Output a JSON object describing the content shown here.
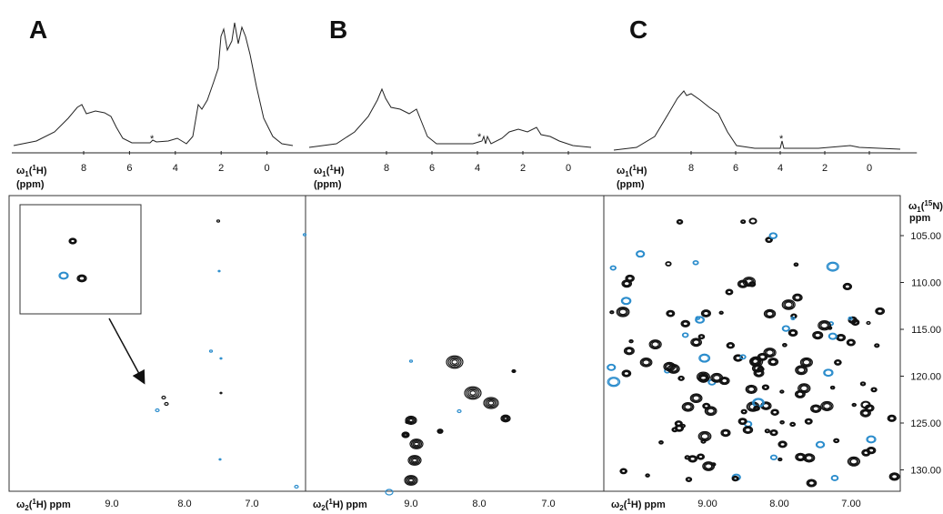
{
  "panels": [
    {
      "label": "A",
      "spectrum_marker": "*",
      "spectrum_axis": {
        "label": [
          "ω",
          "1",
          "(",
          "1",
          "H)"
        ],
        "unit": "(ppm)",
        "ticks": [
          "8",
          "6",
          "4",
          "2",
          "0"
        ]
      },
      "map_x_axis": {
        "label": [
          "ω",
          "2",
          "(",
          "1",
          "H) ppm"
        ],
        "ticks": [
          "9.0",
          "8.0",
          "7.0"
        ]
      }
    },
    {
      "label": "B",
      "spectrum_marker": "*",
      "spectrum_axis": {
        "label": [
          "ω",
          "1",
          "(",
          "1",
          "H)"
        ],
        "unit": "(ppm)",
        "ticks": [
          "8",
          "6",
          "4",
          "2",
          "0"
        ]
      },
      "map_x_axis": {
        "label": [
          "ω",
          "2",
          "(",
          "1",
          "H) ppm"
        ],
        "ticks": [
          "9.0",
          "8.0",
          "7.0"
        ]
      }
    },
    {
      "label": "C",
      "spectrum_marker": "*",
      "spectrum_axis": {
        "label": [
          "ω",
          "1",
          "(",
          "1",
          "H)"
        ],
        "unit": "(ppm)",
        "ticks": [
          "8",
          "6",
          "4",
          "2",
          "0"
        ]
      },
      "map_x_axis": {
        "label": [
          "ω",
          "2",
          "(",
          "1",
          "H) ppm"
        ],
        "ticks": [
          "9.00",
          "8.00",
          "7.00"
        ]
      }
    }
  ],
  "map_y_axis": {
    "label": [
      "ω",
      "1",
      "(",
      "15",
      "N)"
    ],
    "unit": "ppm",
    "ticks": [
      "105.00",
      "110.00",
      "115.00",
      "120.00",
      "125.00",
      "130.00"
    ]
  }
}
